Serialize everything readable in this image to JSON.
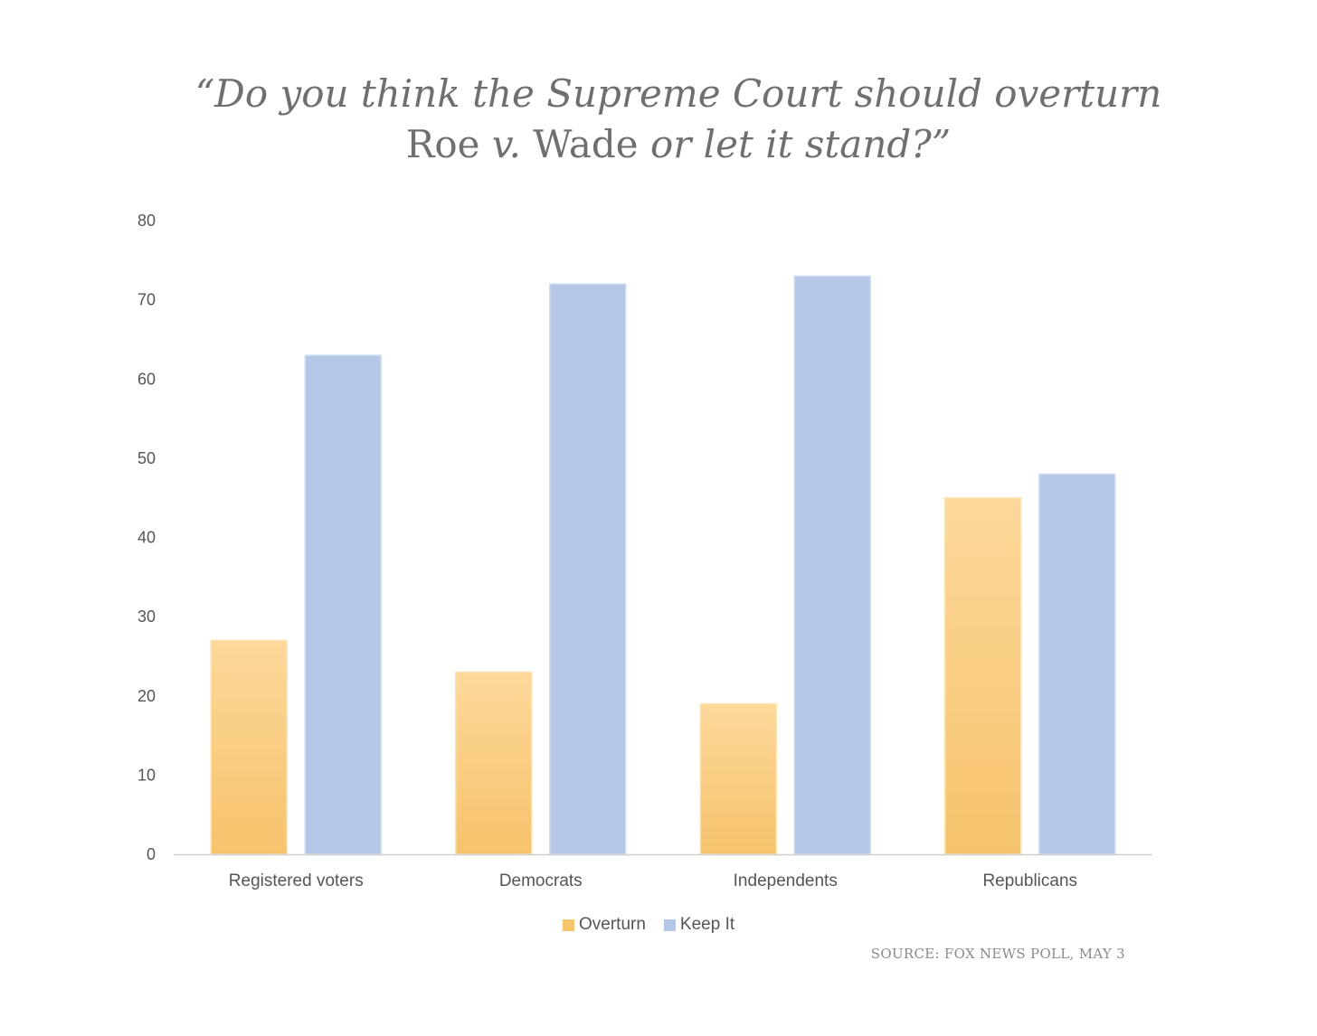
{
  "title": {
    "line1": "“Do you think the Supreme Court should overturn",
    "line2_roe": "Roe ",
    "line2_v": "v.",
    "line2_wade": " Wade ",
    "line2_rest": "or let it stand?”"
  },
  "source": "SOURCE: FOX NEWS POLL, MAY 3",
  "chart_data": {
    "type": "bar",
    "categories": [
      "Registered voters",
      "Democrats",
      "Independents",
      "Republicans"
    ],
    "series": [
      {
        "name": "Overturn",
        "values": [
          27,
          23,
          19,
          45
        ],
        "color": "#f6c66f"
      },
      {
        "name": "Keep It",
        "values": [
          63,
          72,
          73,
          48
        ],
        "color": "#b4c7e7"
      }
    ],
    "ylim": [
      0,
      80
    ],
    "yticks": [
      0,
      10,
      20,
      30,
      40,
      50,
      60,
      70,
      80
    ],
    "grid": false,
    "legend": "bottom"
  }
}
